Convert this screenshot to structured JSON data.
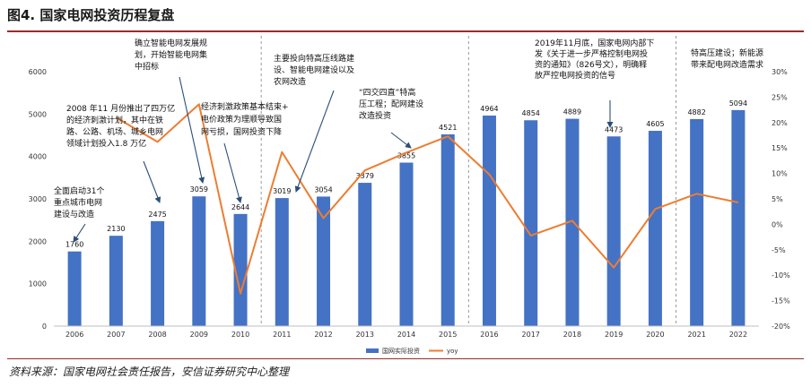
{
  "figure_title": "图4. 国家电网投资历程复盘",
  "source_note": "资料来源：国家电网社会责任报告，安信证券研究中心整理",
  "colors": {
    "bar": "#4472c4",
    "line": "#ed7d31",
    "rule": "#9b2b2b"
  },
  "chart_data": {
    "type": "bar",
    "categories": [
      "2006",
      "2007",
      "2008",
      "2009",
      "2010",
      "2011",
      "2012",
      "2013",
      "2014",
      "2015",
      "2016",
      "2017",
      "2018",
      "2019",
      "2020",
      "2021",
      "2022"
    ],
    "series": [
      {
        "name": "国网实际投资",
        "type": "bar",
        "axis": "left",
        "values": [
          1760,
          2130,
          2475,
          3059,
          2644,
          3019,
          3054,
          3379,
          3855,
          4521,
          4964,
          4854,
          4889,
          4473,
          4605,
          4882,
          5094
        ]
      },
      {
        "name": "yoy",
        "type": "line",
        "axis": "right",
        "values": [
          null,
          21.0,
          16.2,
          23.6,
          -13.6,
          14.2,
          1.2,
          10.6,
          14.1,
          17.3,
          9.8,
          -2.2,
          0.7,
          -8.5,
          3.0,
          6.0,
          4.3
        ]
      }
    ],
    "data_labels": [
      "1760",
      "2130",
      "2475",
      "3059",
      "2644",
      "3019",
      "3054",
      "3379",
      "3855",
      "4521",
      "4964",
      "4854",
      "4889",
      "4473",
      "4605",
      "4882",
      "5094"
    ],
    "y_left": {
      "ylim": [
        0,
        6000
      ],
      "ticks": [
        "0",
        "1000",
        "2000",
        "3000",
        "4000",
        "5000",
        "6000"
      ]
    },
    "y_right": {
      "ylim": [
        -20,
        30
      ],
      "ticks": [
        "-20%",
        "-15%",
        "-10%",
        "-5%",
        "0%",
        "5%",
        "10%",
        "15%",
        "20%",
        "25%",
        "30%"
      ]
    },
    "grid": false,
    "legend_position": "bottom",
    "annotations": [
      [
        "全面启动31个",
        "重点城市电网",
        "建设与改造"
      ],
      [
        "2008 年11 月份推出了四万亿",
        "的经济刺激计划，其中在铁",
        "路、公路、机场、城乡电网",
        "领域计划投入1.8 万亿"
      ],
      [
        "确立智能电网发展规",
        "划，开始智能电网集",
        "中招标"
      ],
      [
        "经济刺激政策基本结束+",
        "电价政策为理顺导致国",
        "网亏损，国网投资下降"
      ],
      [
        "主要投向特高压线路建",
        "设、智能电网建设以及",
        "农网改造"
      ],
      [
        "“四交四直”特高",
        "压工程；配网建设",
        "改造投资"
      ],
      [
        "2019年11月底，国家电网内部下",
        "发《关于进一步严格控制电网投",
        "资的通知》（826号文），明确释",
        "放严控电网投资的信号"
      ],
      [
        "特高压建设；新能源",
        "带来配电网改造需求"
      ]
    ]
  }
}
